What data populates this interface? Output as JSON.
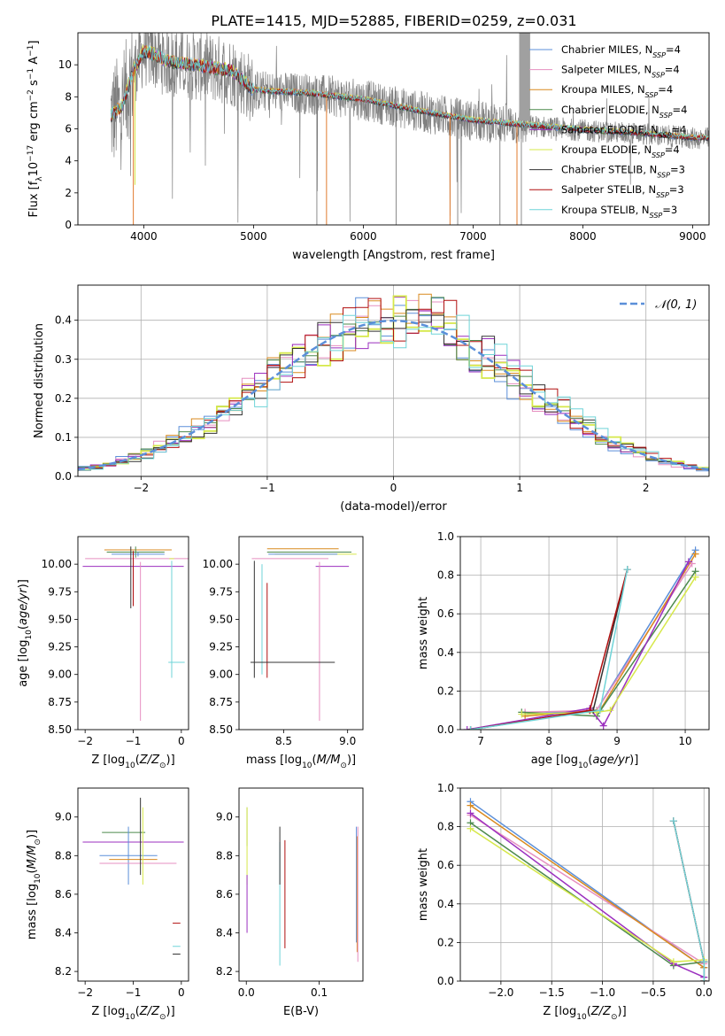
{
  "figure": {
    "title": "PLATE=1415, MJD=52885, FIBERID=0259, z=0.031"
  },
  "colors": {
    "Chabrier MILES": "#5b8fd9",
    "Salpeter MILES": "#e68fc0",
    "Kroupa MILES": "#d98a1f",
    "Chabrier ELODIE": "#4d8a4d",
    "Salpeter ELODIE": "#9b2fbf",
    "Kroupa ELODIE": "#d6e84a",
    "Chabrier STELIB": "#333333",
    "Salpeter STELIB": "#b00f0f",
    "Kroupa STELIB": "#6fd4d8",
    "data": "#808080",
    "normal": "#5b8fd9"
  },
  "chart_data": [
    {
      "type": "line",
      "id": "spectrum",
      "title": "PLATE=1415, MJD=52885, FIBERID=0259, z=0.031",
      "xlabel": "wavelength [Angstrom, rest frame]",
      "ylabel": "Flux [f_λ 10^-17 erg cm^-2 s^-1 A^-1]",
      "xlim": [
        3400,
        9150
      ],
      "ylim": [
        0,
        12
      ],
      "xticks": [
        4000,
        5000,
        6000,
        7000,
        8000,
        9000
      ],
      "yticks": [
        0,
        2,
        4,
        6,
        8,
        10
      ],
      "grid": false,
      "legend_position": "top-right",
      "data_series": {
        "name": "data",
        "x_range": [
          3700,
          9150
        ]
      },
      "model_continuum": {
        "x": [
          3700,
          3800,
          3900,
          4000,
          4100,
          4200,
          4400,
          4600,
          4800,
          5000,
          5200,
          5500,
          6000,
          6500,
          7000,
          7500,
          8000,
          8500,
          9000
        ],
        "y": [
          6.8,
          7.3,
          9.5,
          10.8,
          10.6,
          10.2,
          10.0,
          9.8,
          9.6,
          8.4,
          8.3,
          8.2,
          7.8,
          7.1,
          6.5,
          6.2,
          5.9,
          5.7,
          5.4
        ]
      },
      "legend": [
        {
          "label": "Chabrier MILES, N",
          "sub": "SSP",
          "suffix": "=4"
        },
        {
          "label": "Salpeter MILES, N",
          "sub": "SSP",
          "suffix": "=4"
        },
        {
          "label": "Kroupa MILES, N",
          "sub": "SSP",
          "suffix": "=4"
        },
        {
          "label": "Chabrier ELODIE, N",
          "sub": "SSP",
          "suffix": "=4"
        },
        {
          "label": "Salpeter ELODIE, N",
          "sub": "SSP",
          "suffix": "=4"
        },
        {
          "label": "Kroupa ELODIE, N",
          "sub": "SSP",
          "suffix": "=4"
        },
        {
          "label": "Chabrier STELIB, N",
          "sub": "SSP",
          "suffix": "=3"
        },
        {
          "label": "Salpeter STELIB, N",
          "sub": "SSP",
          "suffix": "=3"
        },
        {
          "label": "Kroupa STELIB, N",
          "sub": "SSP",
          "suffix": "=3"
        }
      ]
    },
    {
      "type": "histogram",
      "id": "residuals",
      "xlabel": "(data-model)/error",
      "ylabel": "Normed distribution",
      "xlim": [
        -2.5,
        2.5
      ],
      "ylim": [
        0,
        0.49
      ],
      "xticks": [
        -2,
        -1,
        0,
        1,
        2
      ],
      "yticks": [
        0.0,
        0.1,
        0.2,
        0.3,
        0.4
      ],
      "grid": true,
      "legend_position": "top-right",
      "legend": [
        {
          "label": "𝒩(0, 1)"
        }
      ],
      "bin_width": 0.1
    },
    {
      "type": "errorbar",
      "id": "age-vs-z",
      "xlabel": "Z [log10(Z/Z⊙)]",
      "ylabel": "age  [log10(age/yr)]",
      "xlim": [
        -2.15,
        0.15
      ],
      "ylim": [
        8.5,
        10.25
      ],
      "xticks": [
        -2,
        -1,
        0
      ],
      "yticks": [
        8.5,
        8.75,
        9.0,
        9.25,
        9.5,
        9.75,
        10.0
      ],
      "points": [
        {
          "series": "Kroupa MILES",
          "x": -0.9,
          "y": 10.13,
          "xerr": 0.7,
          "yerr": 0.0
        },
        {
          "series": "Chabrier ELODIE",
          "x": -0.95,
          "y": 10.11,
          "xerr": 0.6,
          "yerr": 0.05
        },
        {
          "series": "Chabrier MILES",
          "x": -0.9,
          "y": 10.09,
          "xerr": 0.55,
          "yerr": 0.02
        },
        {
          "series": "Salpeter MILES",
          "x": -0.9,
          "y": 10.05,
          "xerr": 1.1,
          "yerr": 0.0
        },
        {
          "series": "Salpeter ELODIE",
          "x": -1.0,
          "y": 9.98,
          "xerr": 1.05,
          "yerr": 0.0
        },
        {
          "series": "Kroupa ELODIE",
          "x": -0.2,
          "y": 10.05,
          "xerr": 0.05,
          "yerr": 0.0
        },
        {
          "series": "Salpeter STELIB",
          "x": -1.0,
          "y": 9.87,
          "xerr": 0.0,
          "yerr": 0.25
        },
        {
          "series": "Chabrier STELIB",
          "x": -1.05,
          "y": 9.88,
          "xerr": 0.0,
          "yerr": 0.28
        },
        {
          "series": "Salpeter MILES",
          "x": -0.85,
          "y": 9.3,
          "xerr": 0.0,
          "yerr": 0.72
        },
        {
          "series": "Kroupa STELIB",
          "x": -0.2,
          "y": 9.5,
          "xerr": 0.0,
          "yerr": 0.53
        },
        {
          "series": "Kroupa STELIB",
          "x": -0.1,
          "y": 9.11,
          "xerr": 0.17,
          "yerr": 0.0
        }
      ]
    },
    {
      "type": "errorbar",
      "id": "age-vs-mass",
      "xlabel": "mass [log10(M/M⊙)]",
      "ylabel": "",
      "xlim": [
        8.15,
        9.12
      ],
      "ylim": [
        8.5,
        10.25
      ],
      "xticks": [
        8.5,
        9.0
      ],
      "yticks": [
        8.5,
        8.75,
        9.0,
        9.25,
        9.5,
        9.75,
        10.0
      ],
      "points": [
        {
          "series": "Kroupa MILES",
          "x": 8.65,
          "y": 10.14,
          "xerr": 0.28,
          "yerr": 0.0
        },
        {
          "series": "Chabrier ELODIE",
          "x": 8.7,
          "y": 10.11,
          "xerr": 0.33,
          "yerr": 0.0
        },
        {
          "series": "Kroupa ELODIE",
          "x": 8.75,
          "y": 10.09,
          "xerr": 0.32,
          "yerr": 0.0
        },
        {
          "series": "Chabrier MILES",
          "x": 8.65,
          "y": 10.09,
          "xerr": 0.27,
          "yerr": 0.0
        },
        {
          "series": "Salpeter MILES",
          "x": 8.55,
          "y": 10.05,
          "xerr": 0.3,
          "yerr": 0.0
        },
        {
          "series": "Salpeter ELODIE",
          "x": 8.88,
          "y": 9.98,
          "xerr": 0.13,
          "yerr": 0.0
        },
        {
          "series": "Salpeter STELIB",
          "x": 8.37,
          "y": 9.4,
          "xerr": 0.0,
          "yerr": 0.43
        },
        {
          "series": "Chabrier STELIB",
          "x": 8.27,
          "y": 9.5,
          "xerr": 0.0,
          "yerr": 0.53
        },
        {
          "series": "Salpeter MILES",
          "x": 8.78,
          "y": 9.3,
          "xerr": 0.0,
          "yerr": 0.72
        },
        {
          "series": "Kroupa STELIB",
          "x": 8.33,
          "y": 9.5,
          "xerr": 0.0,
          "yerr": 0.5
        },
        {
          "series": "Chabrier STELIB",
          "x": 8.57,
          "y": 9.11,
          "xerr": 0.33,
          "yerr": 0.0
        }
      ]
    },
    {
      "type": "line",
      "id": "weight-vs-age",
      "xlabel": "age  [log10(age/yr)]",
      "ylabel": "mass weight",
      "xlim": [
        6.7,
        10.35
      ],
      "ylim": [
        0,
        1
      ],
      "xticks": [
        7,
        8,
        9,
        10
      ],
      "yticks": [
        0.0,
        0.2,
        0.4,
        0.6,
        0.8,
        1.0
      ],
      "grid": true,
      "series": [
        {
          "name": "Chabrier MILES",
          "x": [
            7.65,
            8.7,
            10.15
          ],
          "y": [
            0.08,
            0.1,
            0.93
          ]
        },
        {
          "name": "Salpeter MILES",
          "x": [
            7.65,
            8.7,
            10.1
          ],
          "y": [
            0.09,
            0.1,
            0.86
          ]
        },
        {
          "name": "Kroupa MILES",
          "x": [
            7.65,
            8.75,
            10.15
          ],
          "y": [
            0.07,
            0.1,
            0.91
          ]
        },
        {
          "name": "Chabrier ELODIE",
          "x": [
            7.6,
            8.7,
            10.15
          ],
          "y": [
            0.09,
            0.07,
            0.82
          ]
        },
        {
          "name": "Salpeter ELODIE",
          "x": [
            6.8,
            8.6,
            8.8,
            10.05
          ],
          "y": [
            0.0,
            0.11,
            0.02,
            0.87
          ]
        },
        {
          "name": "Kroupa ELODIE",
          "x": [
            7.6,
            8.7,
            8.9,
            10.15
          ],
          "y": [
            0.08,
            0.09,
            0.1,
            0.79
          ]
        },
        {
          "name": "Chabrier STELIB",
          "x": [
            6.85,
            8.65,
            9.15
          ],
          "y": [
            0.0,
            0.1,
            0.83
          ]
        },
        {
          "name": "Salpeter STELIB",
          "x": [
            6.85,
            8.6,
            9.15
          ],
          "y": [
            0.0,
            0.1,
            0.83
          ]
        },
        {
          "name": "Kroupa STELIB",
          "x": [
            6.85,
            8.75,
            9.15
          ],
          "y": [
            0.0,
            0.1,
            0.83
          ]
        }
      ]
    },
    {
      "type": "errorbar",
      "id": "mass-vs-z",
      "xlabel": "Z [log10(Z/Z⊙)]",
      "ylabel": "mass [log10(M/M⊙)]",
      "xlim": [
        -2.15,
        0.15
      ],
      "ylim": [
        8.15,
        9.15
      ],
      "xticks": [
        -2,
        -1,
        0
      ],
      "yticks": [
        8.2,
        8.4,
        8.6,
        8.8,
        9.0
      ],
      "points": [
        {
          "series": "Chabrier ELODIE",
          "x": -1.2,
          "y": 8.92,
          "xerr": 0.45,
          "yerr": 0.0
        },
        {
          "series": "Salpeter ELODIE",
          "x": -1.0,
          "y": 8.87,
          "xerr": 1.05,
          "yerr": 0.0
        },
        {
          "series": "Chabrier MILES",
          "x": -1.1,
          "y": 8.8,
          "xerr": 0.6,
          "yerr": 0.15
        },
        {
          "series": "Kroupa MILES",
          "x": -1.0,
          "y": 8.78,
          "xerr": 0.5,
          "yerr": 0.0
        },
        {
          "series": "Salpeter MILES",
          "x": -0.9,
          "y": 8.76,
          "xerr": 0.8,
          "yerr": 0.0
        },
        {
          "series": "Kroupa ELODIE",
          "x": -0.8,
          "y": 8.85,
          "xerr": 0.0,
          "yerr": 0.2
        },
        {
          "series": "Chabrier STELIB",
          "x": -0.85,
          "y": 8.9,
          "xerr": 0.0,
          "yerr": 0.2
        },
        {
          "series": "Salpeter STELIB",
          "x": -0.1,
          "y": 8.45,
          "xerr": 0.08,
          "yerr": 0.0
        },
        {
          "series": "Kroupa STELIB",
          "x": -0.1,
          "y": 8.33,
          "xerr": 0.08,
          "yerr": 0.0
        },
        {
          "series": "Chabrier STELIB",
          "x": -0.1,
          "y": 8.29,
          "xerr": 0.08,
          "yerr": 0.0
        }
      ]
    },
    {
      "type": "errorbar",
      "id": "mass-vs-ebv",
      "xlabel": "E(B-V)",
      "ylabel": "",
      "xlim": [
        -0.01,
        0.16
      ],
      "ylim": [
        8.15,
        9.15
      ],
      "xticks": [
        0.0,
        0.1
      ],
      "yticks": [
        8.2,
        8.4,
        8.6,
        8.8,
        9.0
      ],
      "points": [
        {
          "series": "Chabrier ELODIE",
          "x": 0.001,
          "y": 8.95,
          "xerr": 0.0,
          "yerr": 0.1
        },
        {
          "series": "Kroupa ELODIE",
          "x": 0.001,
          "y": 8.85,
          "xerr": 0.0,
          "yerr": 0.2
        },
        {
          "series": "Salpeter ELODIE",
          "x": 0.001,
          "y": 8.55,
          "xerr": 0.0,
          "yerr": 0.15
        },
        {
          "series": "Kroupa STELIB",
          "x": 0.046,
          "y": 8.55,
          "xerr": 0.0,
          "yerr": 0.32
        },
        {
          "series": "Chabrier STELIB",
          "x": 0.046,
          "y": 8.8,
          "xerr": 0.0,
          "yerr": 0.15
        },
        {
          "series": "Salpeter STELIB",
          "x": 0.053,
          "y": 8.6,
          "xerr": 0.0,
          "yerr": 0.28
        },
        {
          "series": "Chabrier MILES",
          "x": 0.151,
          "y": 8.65,
          "xerr": 0.0,
          "yerr": 0.3
        },
        {
          "series": "Kroupa MILES",
          "x": 0.152,
          "y": 8.6,
          "xerr": 0.0,
          "yerr": 0.3
        },
        {
          "series": "Salpeter MILES",
          "x": 0.153,
          "y": 8.6,
          "xerr": 0.0,
          "yerr": 0.35
        }
      ]
    },
    {
      "type": "line",
      "id": "weight-vs-z",
      "xlabel": "Z [log10(Z/Z⊙)]",
      "ylabel": "mass weight",
      "xlim": [
        -2.4,
        0.05
      ],
      "ylim": [
        0,
        1
      ],
      "xticks": [
        -2.0,
        -1.5,
        -1.0,
        -0.5,
        0.0
      ],
      "yticks": [
        0.0,
        0.2,
        0.4,
        0.6,
        0.8,
        1.0
      ],
      "grid": true,
      "series": [
        {
          "name": "Chabrier MILES",
          "x": [
            -2.3,
            0.0,
            0.0
          ],
          "y": [
            0.93,
            0.07,
            0.0
          ]
        },
        {
          "name": "Salpeter MILES",
          "x": [
            -2.3,
            0.0,
            0.0
          ],
          "y": [
            0.86,
            0.09,
            0.0
          ]
        },
        {
          "name": "Kroupa MILES",
          "x": [
            -2.3,
            0.0,
            0.0
          ],
          "y": [
            0.91,
            0.07,
            0.0
          ]
        },
        {
          "name": "Chabrier ELODIE",
          "x": [
            -2.3,
            -0.3,
            0.0
          ],
          "y": [
            0.82,
            0.08,
            0.1
          ]
        },
        {
          "name": "Salpeter ELODIE",
          "x": [
            -2.3,
            -0.3,
            0.0
          ],
          "y": [
            0.87,
            0.09,
            0.02
          ]
        },
        {
          "name": "Kroupa ELODIE",
          "x": [
            -2.3,
            -0.3,
            0.0
          ],
          "y": [
            0.79,
            0.1,
            0.11
          ]
        },
        {
          "name": "Chabrier STELIB",
          "x": [
            -0.3,
            0.0,
            0.0
          ],
          "y": [
            0.83,
            0.1,
            0.0
          ]
        },
        {
          "name": "Salpeter STELIB",
          "x": [
            -0.3,
            0.0,
            0.0
          ],
          "y": [
            0.83,
            0.1,
            0.0
          ]
        },
        {
          "name": "Kroupa STELIB",
          "x": [
            -0.3,
            0.0,
            0.0
          ],
          "y": [
            0.83,
            0.1,
            0.0
          ]
        }
      ]
    }
  ]
}
